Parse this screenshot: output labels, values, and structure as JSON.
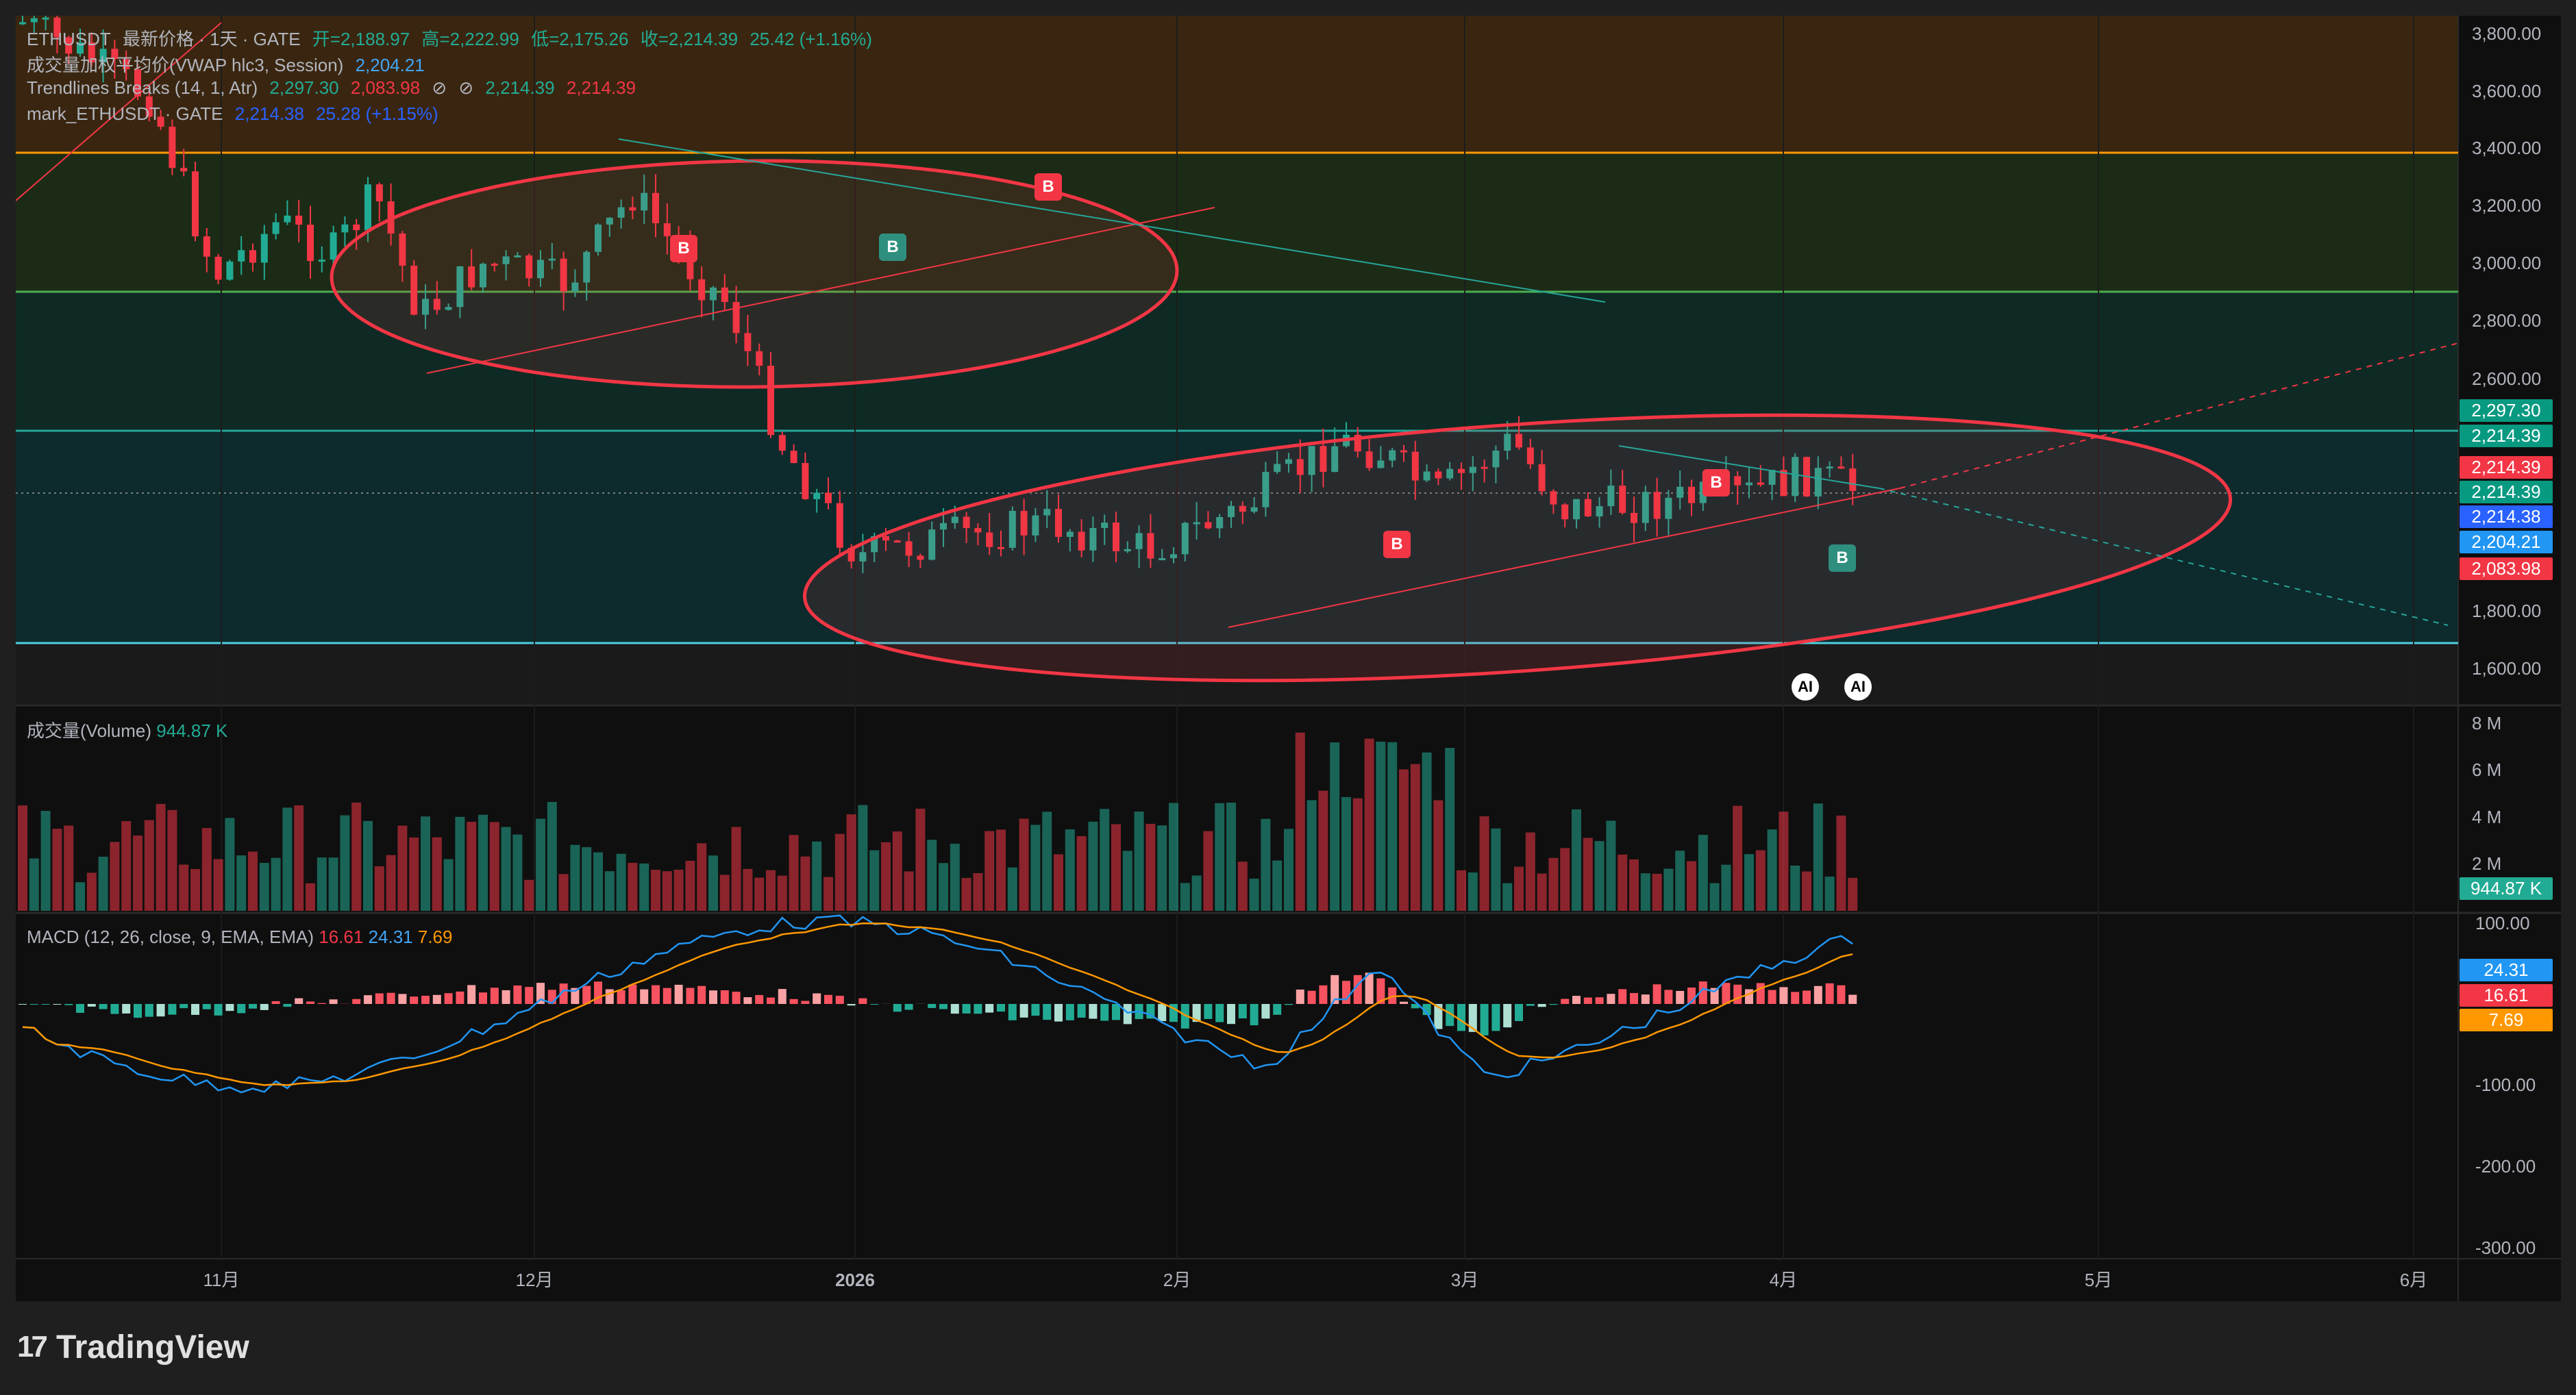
{
  "legend": {
    "symbol": "ETHUSDT",
    "title_tail": "最新价格 · 1天 · GATE",
    "open": "开=2,188.97",
    "high": "高=2,222.99",
    "low": "低=2,175.26",
    "close": "收=2,214.39",
    "change": "25.42 (+1.16%)",
    "vwap_label": "成交量加权平均价(VWAP hlc3, Session)",
    "vwap_value": "2,204.21",
    "trend_label": "Trendlines Breaks (14, 1, Atr)",
    "trend_v1": "2,297.30",
    "trend_v2": "2,083.98",
    "trend_v3": "2,214.39",
    "trend_v4": "2,214.39",
    "mark_label": "mark_ETHUSDT · GATE",
    "mark_value": "2,214.38",
    "mark_change": "25.28 (+1.15%)"
  },
  "volume_pane": {
    "label": "成交量(Volume)",
    "value": "944.87 K",
    "tag": "944.87 K",
    "axis": [
      "8 M",
      "6 M",
      "4 M",
      "2 M"
    ]
  },
  "macd_pane": {
    "label": "MACD (12, 26, close, 9, EMA, EMA)",
    "hist": "16.61",
    "macd": "24.31",
    "signal": "7.69",
    "axis": [
      "100.00",
      "-100.00",
      "-200.00",
      "-300.00"
    ],
    "tags": [
      "24.31",
      "16.61",
      "7.69"
    ]
  },
  "price_axis": [
    "3,800.00",
    "3,600.00",
    "3,400.00",
    "3,200.00",
    "3,000.00",
    "2,800.00",
    "2,600.00",
    "1,800.00",
    "1,600.00"
  ],
  "price_tags": [
    {
      "text": "2,297.30",
      "color": "#089981"
    },
    {
      "text": "2,214.39",
      "color": "#089981"
    },
    {
      "text": "2,214.39",
      "color": "#f23645"
    },
    {
      "text": "2,214.39",
      "color": "#089981"
    },
    {
      "text": "2,214.38",
      "color": "#2962ff"
    },
    {
      "text": "2,204.21",
      "color": "#2196f3"
    },
    {
      "text": "2,083.98",
      "color": "#f23645"
    }
  ],
  "time_axis": [
    "11月",
    "12月",
    "2026",
    "2月",
    "3月",
    "4月",
    "5月",
    "6月"
  ],
  "badges": [
    "B",
    "B",
    "B",
    "B",
    "B",
    "B"
  ],
  "ai_buttons": [
    "AI",
    "AI"
  ],
  "brand": "TradingView",
  "colors": {
    "up": "#22ab94",
    "down": "#f23645",
    "macd": "#2196f3",
    "signal": "#ff9800"
  }
}
